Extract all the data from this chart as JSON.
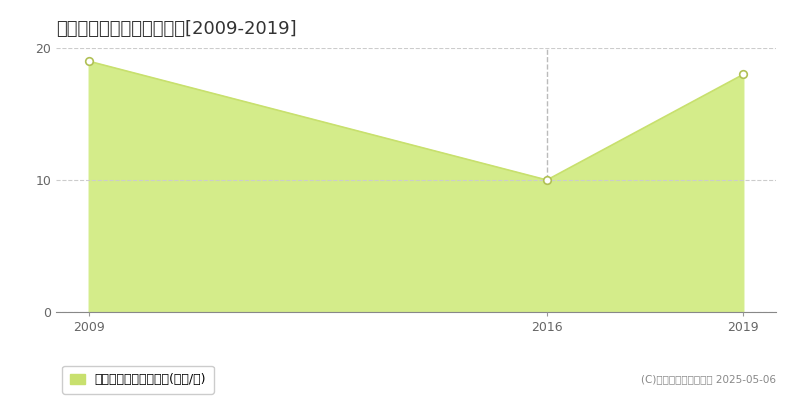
{
  "title": "高松市西町　土地価格推移[2009-2019]",
  "x_values": [
    2009,
    2016,
    2019
  ],
  "y_values": [
    19,
    10,
    18
  ],
  "xlim": [
    2009,
    2019
  ],
  "ylim": [
    0,
    20
  ],
  "yticks": [
    0,
    10,
    20
  ],
  "xticks": [
    2009,
    2016,
    2019
  ],
  "line_color": "#c8e06e",
  "fill_color": "#d4ec8a",
  "marker_color": "white",
  "marker_edge_color": "#b0c055",
  "grid_color": "#cccccc",
  "vline_color": "#bbbbbb",
  "vline_x": 2016,
  "background_color": "#ffffff",
  "legend_label": "土地価格　平均坪単価(万円/坪)",
  "legend_color": "#c8e06e",
  "copyright_text": "(C)土地価格ドットコム 2025-05-06",
  "title_fontsize": 13,
  "axis_fontsize": 9,
  "legend_fontsize": 9
}
